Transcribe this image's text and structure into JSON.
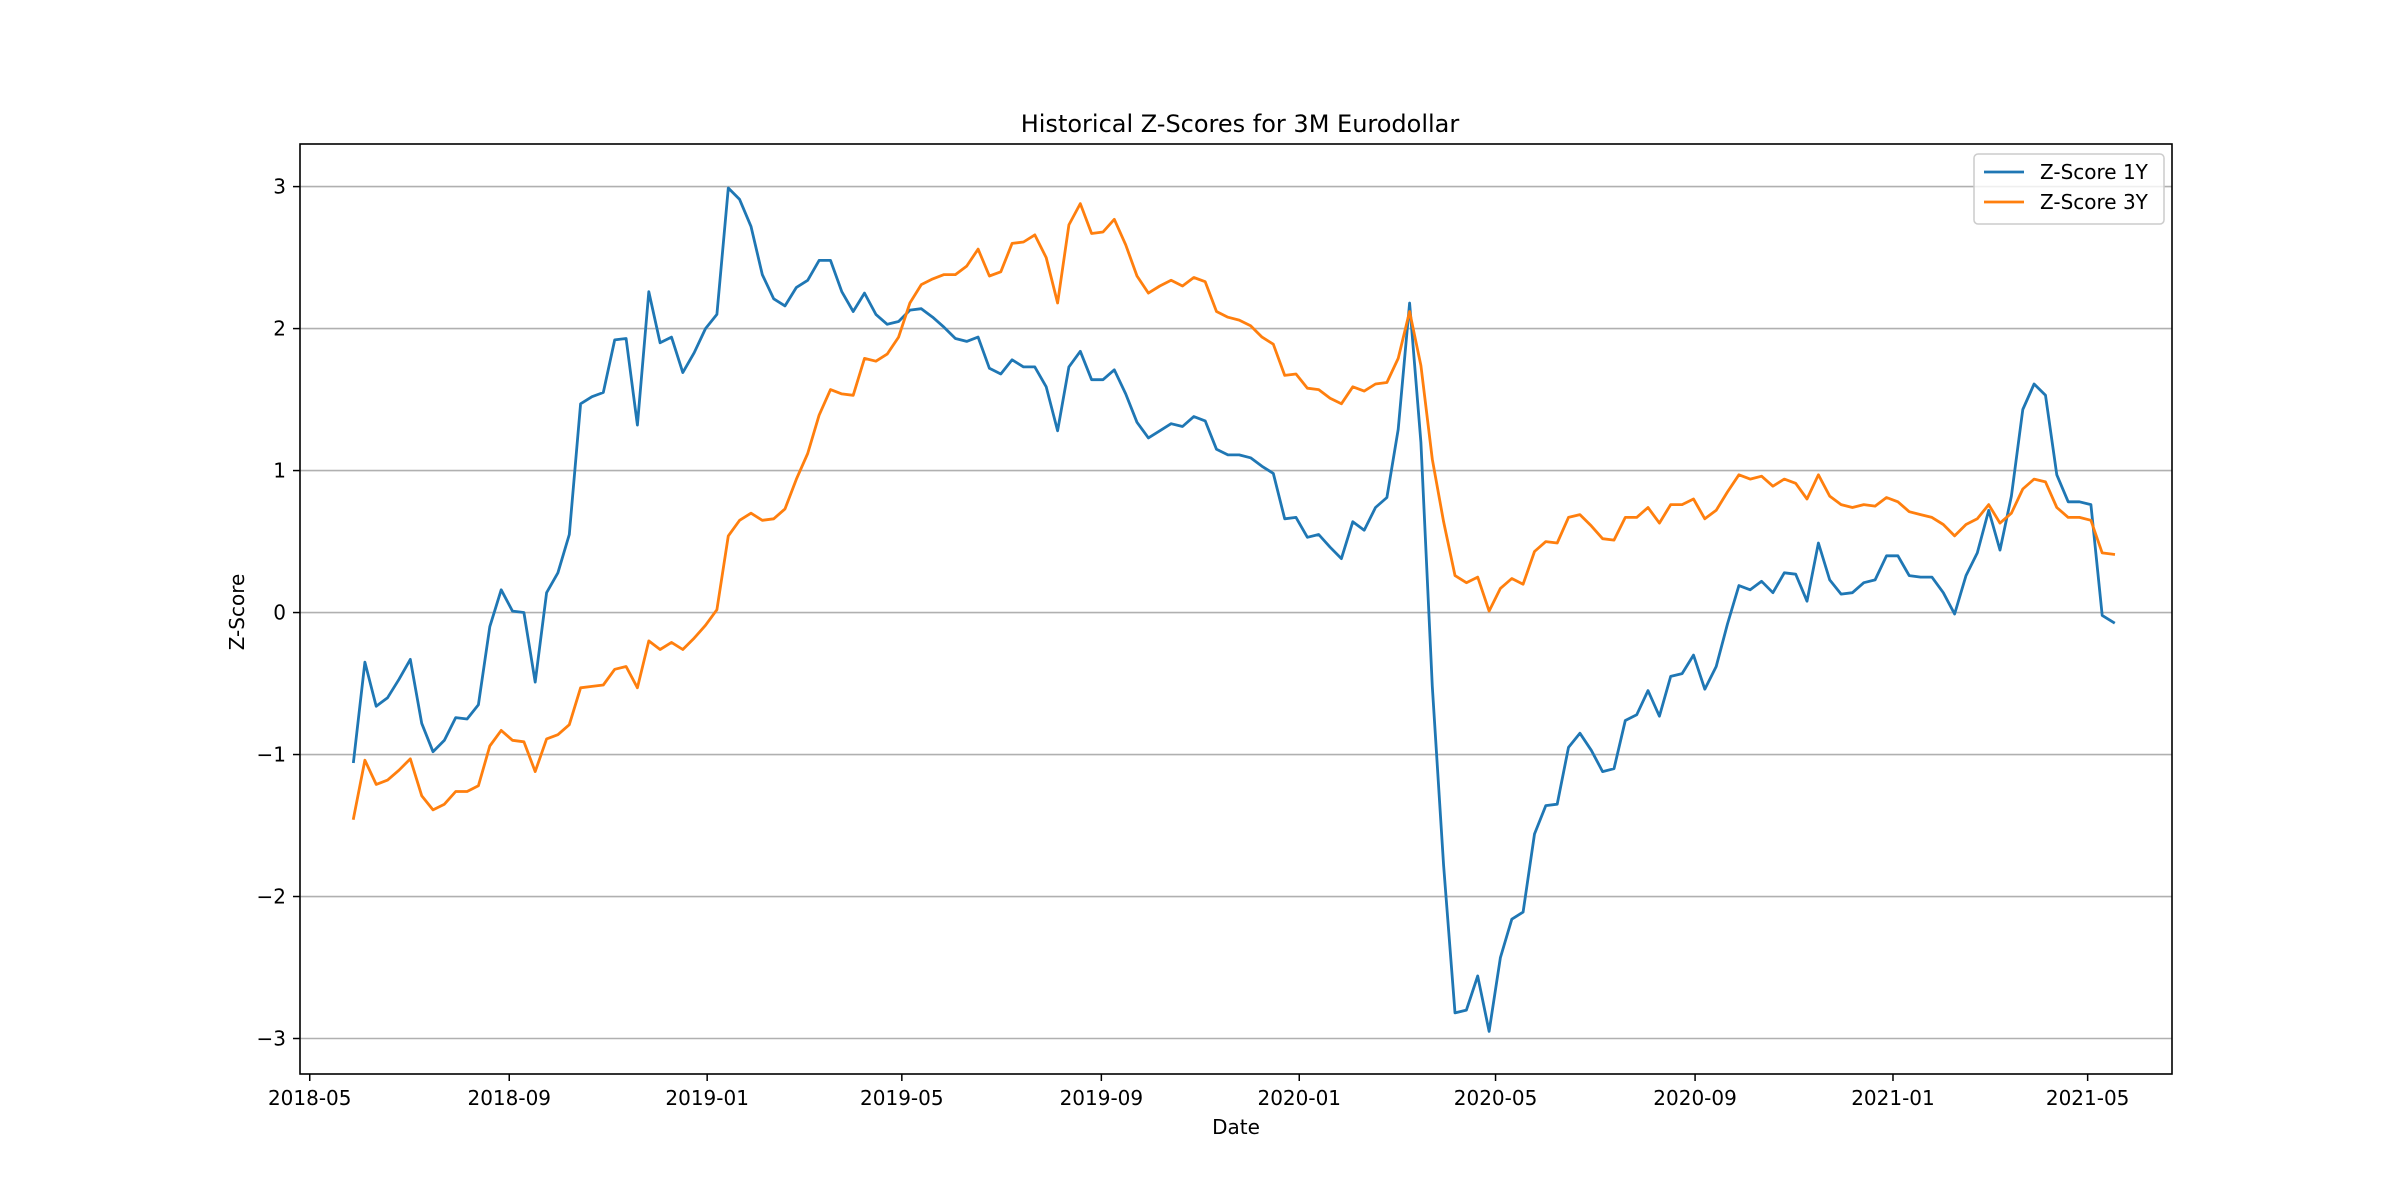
{
  "chart_data": {
    "type": "line",
    "title": "Historical Z-Scores for 3M Eurodollar",
    "xlabel": "Date",
    "ylabel": "Z-Score",
    "x_start": "2018-05-28",
    "x_step_days": 7,
    "xlim": [
      "2018-04-25",
      "2021-06-22"
    ],
    "ylim": [
      -3.25,
      3.3
    ],
    "x_ticks": [
      "2018-05",
      "2018-09",
      "2019-01",
      "2019-05",
      "2019-09",
      "2020-01",
      "2020-05",
      "2020-09",
      "2021-01",
      "2021-05"
    ],
    "y_ticks": [
      -3,
      -2,
      -1,
      0,
      1,
      2,
      3
    ],
    "y_tick_labels": [
      "−3",
      "−2",
      "−1",
      "0",
      "1",
      "2",
      "3"
    ],
    "grid": "horizontal",
    "legend_position": "top-right",
    "series": [
      {
        "name": "Z-Score 1Y",
        "color": "#1f77b4",
        "values": [
          -1.05,
          -0.35,
          -0.66,
          -0.6,
          -0.47,
          -0.33,
          -0.78,
          -0.98,
          -0.9,
          -0.74,
          -0.75,
          -0.65,
          -0.1,
          0.16,
          0.01,
          0.0,
          -0.49,
          0.14,
          0.28,
          0.55,
          1.47,
          1.52,
          1.55,
          1.92,
          1.93,
          1.32,
          2.26,
          1.9,
          1.94,
          1.69,
          1.83,
          2.0,
          2.1,
          2.99,
          2.91,
          2.72,
          2.38,
          2.21,
          2.16,
          2.29,
          2.34,
          2.48,
          2.48,
          2.26,
          2.12,
          2.25,
          2.1,
          2.03,
          2.05,
          2.13,
          2.14,
          2.08,
          2.01,
          1.93,
          1.91,
          1.94,
          1.72,
          1.68,
          1.78,
          1.73,
          1.73,
          1.59,
          1.28,
          1.73,
          1.84,
          1.64,
          1.64,
          1.71,
          1.54,
          1.34,
          1.23,
          1.28,
          1.33,
          1.31,
          1.38,
          1.35,
          1.15,
          1.11,
          1.11,
          1.09,
          1.03,
          0.98,
          0.66,
          0.67,
          0.53,
          0.55,
          0.46,
          0.38,
          0.64,
          0.58,
          0.74,
          0.81,
          1.29,
          2.18,
          1.2,
          -0.52,
          -1.78,
          -2.82,
          -2.8,
          -2.56,
          -2.95,
          -2.43,
          -2.16,
          -2.11,
          -1.56,
          -1.36,
          -1.35,
          -0.95,
          -0.85,
          -0.97,
          -1.12,
          -1.1,
          -0.76,
          -0.72,
          -0.55,
          -0.73,
          -0.45,
          -0.43,
          -0.3,
          -0.54,
          -0.38,
          -0.08,
          0.19,
          0.16,
          0.22,
          0.14,
          0.28,
          0.27,
          0.08,
          0.49,
          0.23,
          0.13,
          0.14,
          0.21,
          0.23,
          0.4,
          0.4,
          0.26,
          0.25,
          0.25,
          0.14,
          -0.01,
          0.26,
          0.42,
          0.72,
          0.44,
          0.82,
          1.43,
          1.61,
          1.53,
          0.97,
          0.78,
          0.78,
          0.76,
          -0.02,
          -0.07
        ]
      },
      {
        "name": "Z-Score 3Y",
        "color": "#ff7f0e",
        "values": [
          -1.45,
          -1.04,
          -1.21,
          -1.18,
          -1.11,
          -1.03,
          -1.29,
          -1.39,
          -1.35,
          -1.26,
          -1.26,
          -1.22,
          -0.94,
          -0.83,
          -0.9,
          -0.91,
          -1.12,
          -0.89,
          -0.86,
          -0.79,
          -0.53,
          -0.52,
          -0.51,
          -0.4,
          -0.38,
          -0.53,
          -0.2,
          -0.26,
          -0.21,
          -0.26,
          -0.18,
          -0.09,
          0.02,
          0.54,
          0.65,
          0.7,
          0.65,
          0.66,
          0.73,
          0.94,
          1.12,
          1.39,
          1.57,
          1.54,
          1.53,
          1.79,
          1.77,
          1.82,
          1.94,
          2.18,
          2.31,
          2.35,
          2.38,
          2.38,
          2.44,
          2.56,
          2.37,
          2.4,
          2.6,
          2.61,
          2.66,
          2.5,
          2.18,
          2.73,
          2.88,
          2.67,
          2.68,
          2.77,
          2.59,
          2.37,
          2.25,
          2.3,
          2.34,
          2.3,
          2.36,
          2.33,
          2.12,
          2.08,
          2.06,
          2.02,
          1.94,
          1.89,
          1.67,
          1.68,
          1.58,
          1.57,
          1.51,
          1.47,
          1.59,
          1.56,
          1.61,
          1.62,
          1.79,
          2.12,
          1.74,
          1.08,
          0.64,
          0.26,
          0.21,
          0.25,
          0.01,
          0.17,
          0.24,
          0.2,
          0.43,
          0.5,
          0.49,
          0.67,
          0.69,
          0.61,
          0.52,
          0.51,
          0.67,
          0.67,
          0.74,
          0.63,
          0.76,
          0.76,
          0.8,
          0.66,
          0.72,
          0.85,
          0.97,
          0.94,
          0.96,
          0.89,
          0.94,
          0.91,
          0.8,
          0.97,
          0.82,
          0.76,
          0.74,
          0.76,
          0.75,
          0.81,
          0.78,
          0.71,
          0.69,
          0.67,
          0.62,
          0.54,
          0.62,
          0.66,
          0.76,
          0.63,
          0.7,
          0.87,
          0.94,
          0.92,
          0.74,
          0.67,
          0.67,
          0.65,
          0.42,
          0.41
        ]
      }
    ]
  }
}
